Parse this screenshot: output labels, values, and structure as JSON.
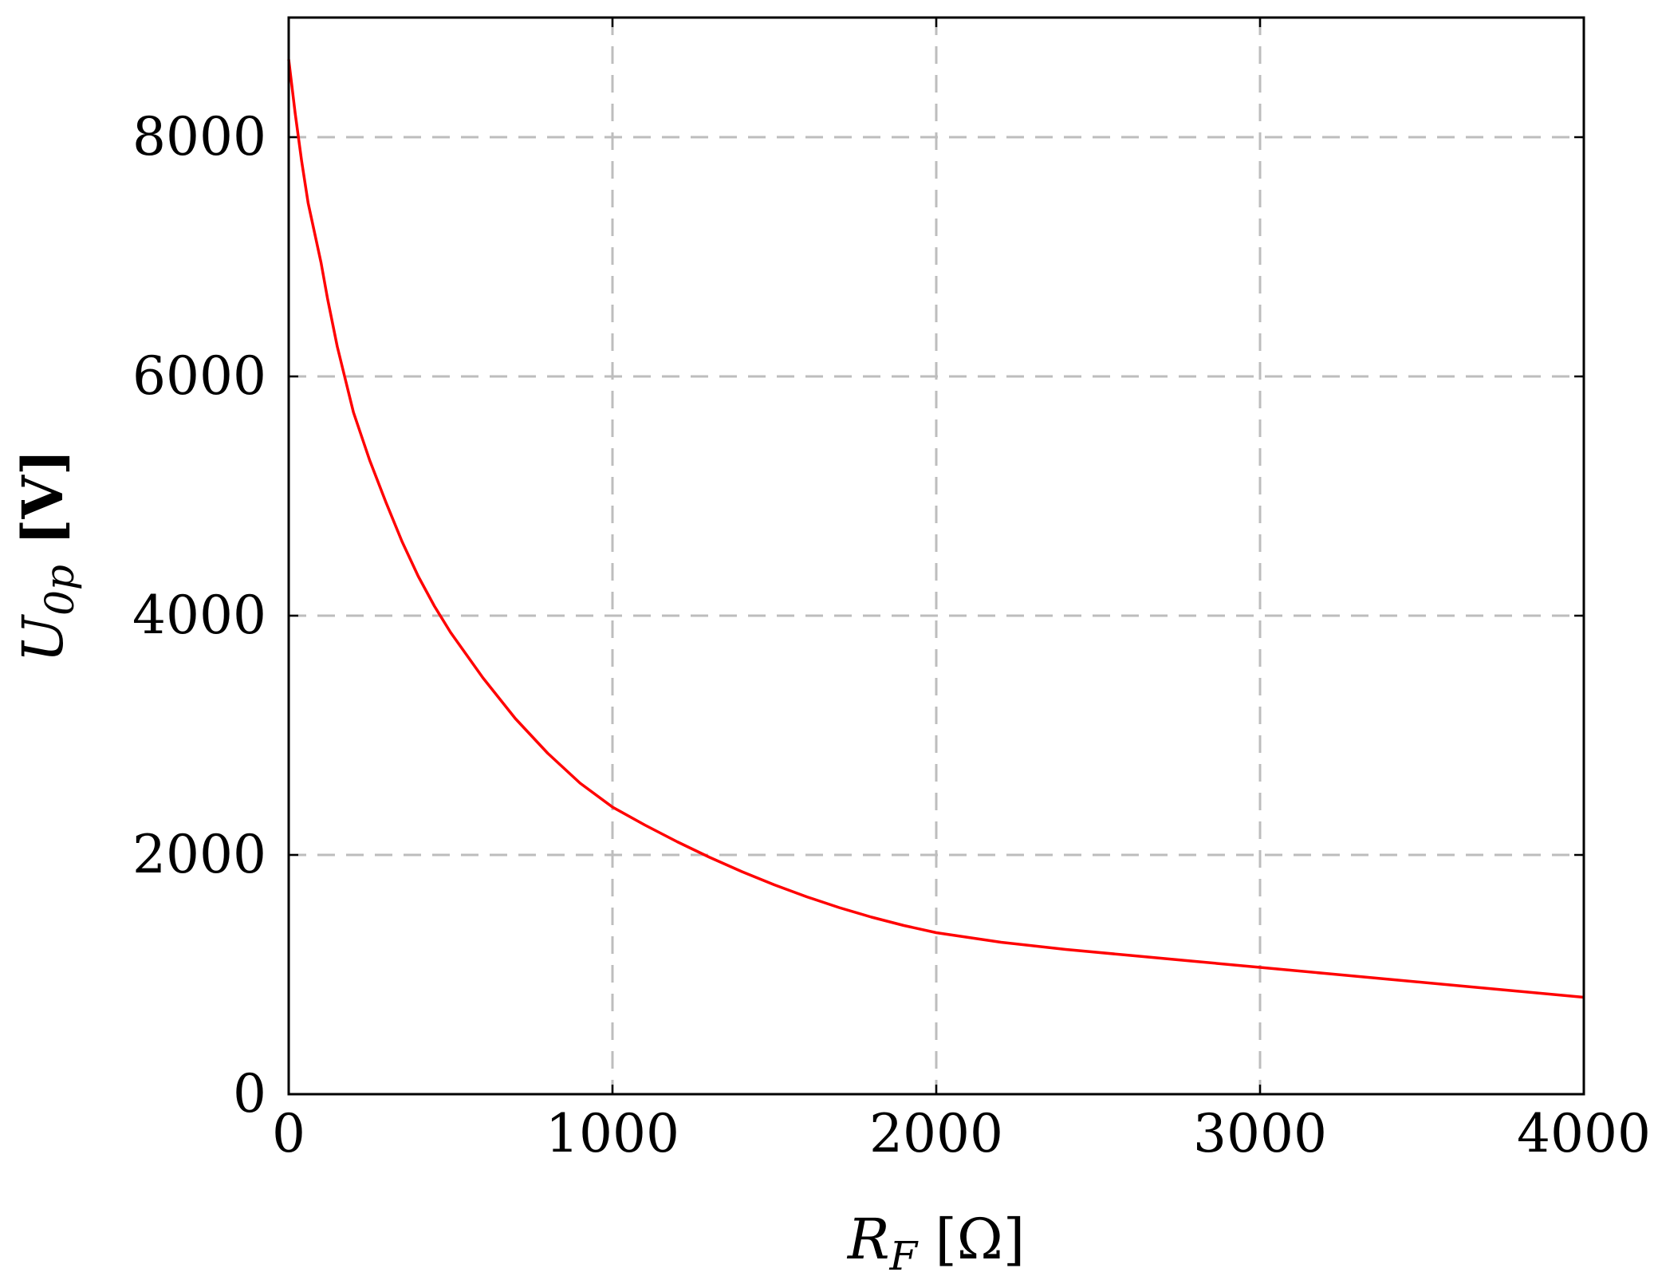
{
  "chart_data": {
    "type": "line",
    "title": "",
    "xlabel": {
      "main": "R",
      "sub": "F",
      "unit": " [Ω]"
    },
    "ylabel": {
      "main": "U",
      "sub": "0p",
      "unit": " [V]"
    },
    "xlim": [
      0,
      4000
    ],
    "ylim": [
      0,
      9000
    ],
    "xticks": [
      0,
      1000,
      2000,
      3000,
      4000
    ],
    "yticks": [
      0,
      2000,
      4000,
      6000,
      8000
    ],
    "xtick_labels": [
      "0",
      "1000",
      "2000",
      "3000",
      "4000"
    ],
    "ytick_labels": [
      "0",
      "2000",
      "4000",
      "6000",
      "8000"
    ],
    "grid": true,
    "series": [
      {
        "color": "#ff0000",
        "x": [
          0,
          20,
          40,
          60,
          80,
          100,
          120,
          150,
          200,
          250,
          300,
          350,
          400,
          450,
          500,
          600,
          700,
          800,
          900,
          1000,
          1100,
          1200,
          1300,
          1400,
          1500,
          1600,
          1700,
          1800,
          1900,
          2000,
          2200,
          2400,
          2600,
          2800,
          3000,
          3200,
          3400,
          3600,
          3800,
          4000
        ],
        "y": [
          8650,
          8200,
          7800,
          7450,
          7200,
          6950,
          6650,
          6250,
          5700,
          5300,
          4950,
          4620,
          4330,
          4080,
          3860,
          3480,
          3140,
          2850,
          2600,
          2400,
          2250,
          2110,
          1980,
          1860,
          1750,
          1650,
          1560,
          1480,
          1410,
          1350,
          1270,
          1210,
          1160,
          1110,
          1060,
          1010,
          960,
          910,
          860,
          810
        ]
      }
    ]
  }
}
